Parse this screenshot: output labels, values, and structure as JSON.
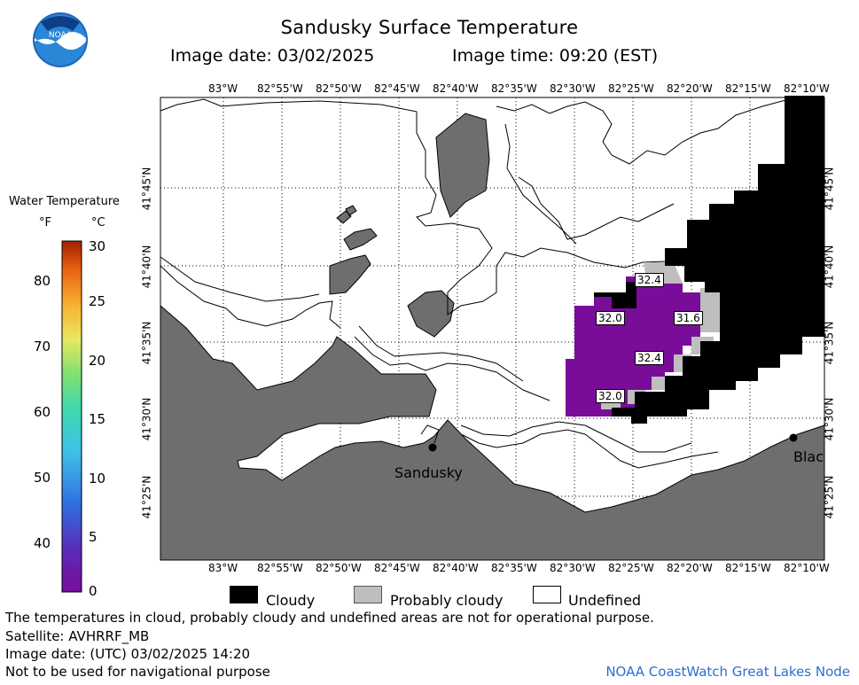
{
  "header": {
    "title": "Sandusky Surface Temperature",
    "image_date": "Image date: 03/02/2025",
    "image_time": "Image time: 09:20 (EST)",
    "logo_text": "NOAA"
  },
  "map": {
    "lon_labels": [
      "83°W",
      "82°55'W",
      "82°50'W",
      "82°45'W",
      "82°40'W",
      "82°35'W",
      "82°30'W",
      "82°25'W",
      "82°20'W",
      "82°15'W",
      "82°10'W"
    ],
    "lat_labels": [
      "41°45'N",
      "41°40'N",
      "41°35'N",
      "41°30'N",
      "41°25'N"
    ],
    "temp_labels": [
      "32.4",
      "32.0",
      "31.6",
      "32.4",
      "32.0"
    ],
    "place_labels": [
      "Sandusky",
      "Blac"
    ],
    "colors": {
      "land": "#6e6e6e",
      "cloudy": "#000000",
      "probably_cloudy": "#bebebe",
      "undefined": "#ffffff",
      "water_temp": "#7a0c9a"
    }
  },
  "colorbar": {
    "title": "Water Temperature",
    "unit_f": "°F",
    "unit_c": "°C",
    "f_ticks": [
      "80",
      "70",
      "60",
      "50",
      "40"
    ],
    "c_ticks": [
      "30",
      "25",
      "20",
      "15",
      "10",
      "5",
      "0"
    ]
  },
  "legend": {
    "cloudy": "Cloudy",
    "probably_cloudy": "Probably cloudy",
    "undefined": "Undefined"
  },
  "footer": {
    "note": "The temperatures in cloud, probably cloudy and undefined areas are not for operational purpose.",
    "satellite": "Satellite: AVHRRF_MB",
    "utc_date": "Image date: (UTC) 03/02/2025  14:20",
    "nav_warning": "Not to be used for navigational purpose",
    "credit": "NOAA CoastWatch Great Lakes Node"
  }
}
